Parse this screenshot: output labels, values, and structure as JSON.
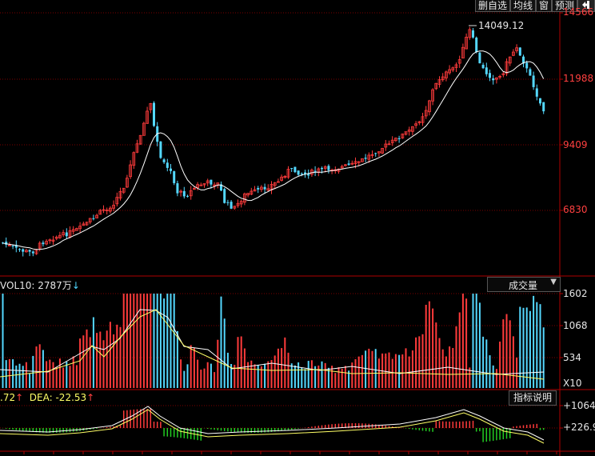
{
  "toolbar": {
    "buttons": [
      "删自选",
      "均线",
      "窗",
      "预测"
    ],
    "exit_icon": "exit-icon"
  },
  "price_panel": {
    "y_labels": [
      "14566",
      "11988",
      "9409",
      "6830"
    ],
    "max_label": "14049.12"
  },
  "volume_panel": {
    "legend_prefix": "VOL10: ",
    "legend_value": "2787万",
    "legend_arrow": "↓",
    "dropdown_label": "成交量",
    "y_labels": [
      "1602",
      "1068",
      "534"
    ],
    "unit_label": "X10"
  },
  "macd_panel": {
    "dif_text": ".72",
    "dif_arrow": "↑",
    "dea_text": "DEA: -22.53",
    "dea_arrow": "↑",
    "button_label": "指标说明",
    "y_labels": [
      "+1064",
      "+226.9"
    ]
  },
  "colors": {
    "up": "#ff3b3b",
    "down": "#54d8ff",
    "grid": "#7a0000",
    "axis": "#b00000",
    "ma": "#ffffff",
    "dea": "#ffff66",
    "macd_pos": "#ff3b3b",
    "macd_neg": "#22cc22"
  }
}
